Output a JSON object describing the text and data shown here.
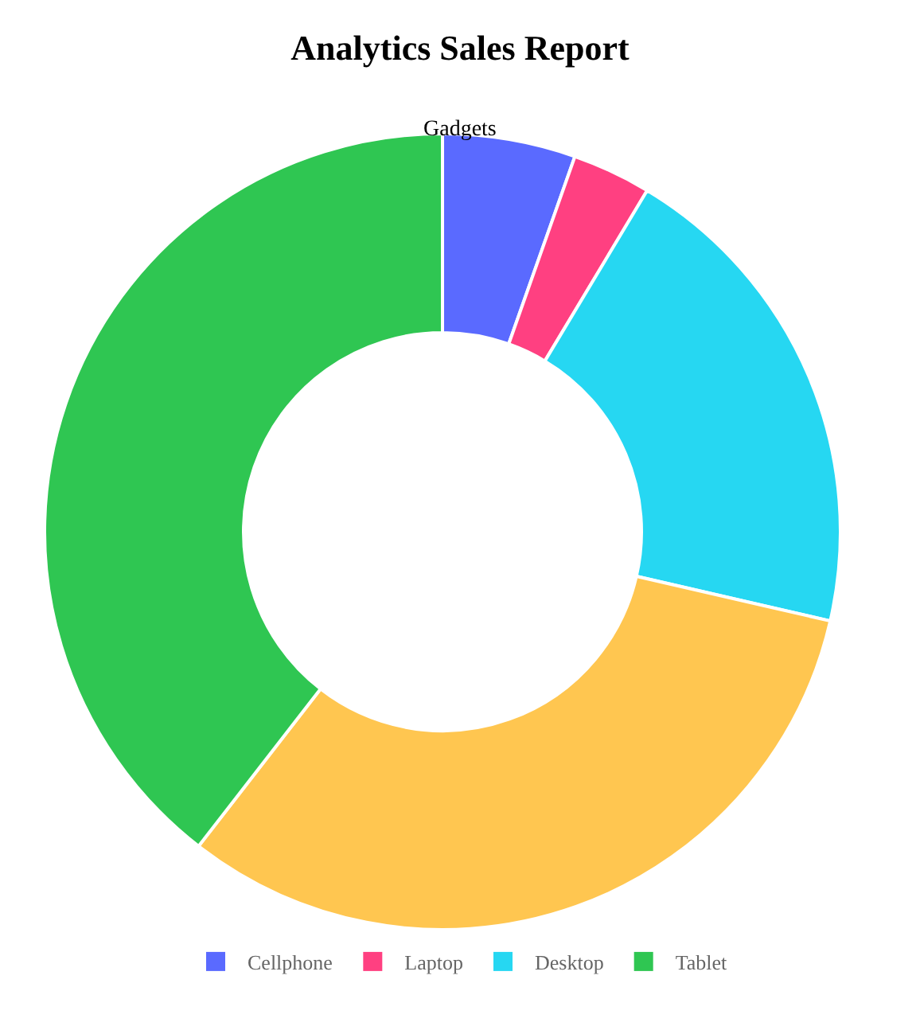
{
  "chart_data": {
    "type": "donut",
    "title": "Analytics Sales Report",
    "subtitle": "Gadgets",
    "categories": [
      "Cellphone",
      "Laptop",
      "Desktop",
      null,
      "Tablet"
    ],
    "values": [
      5.4,
      3.2,
      20,
      31.9,
      39.5
    ],
    "colors": [
      "#5a6aff",
      "#ff4081",
      "#26d7f2",
      "#ffc650",
      "#2fc652"
    ],
    "legend": "bottom"
  }
}
